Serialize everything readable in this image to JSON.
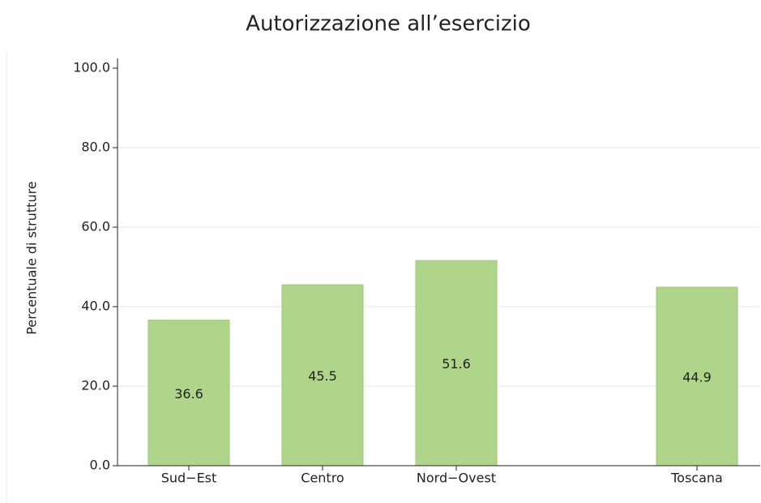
{
  "chart_data": {
    "type": "bar",
    "title": "Autorizzazione all’esercizio",
    "ylabel": "Percentuale di strutture",
    "categories": [
      "Sud−Est",
      "Centro",
      "Nord−Ovest",
      null,
      "Toscana"
    ],
    "values": [
      36.6,
      45.5,
      51.6,
      null,
      44.9
    ],
    "color": "#aed58a",
    "ylim": [
      0,
      100
    ],
    "yticks": [
      {
        "value": 0,
        "label": "0.0"
      },
      {
        "value": 20,
        "label": "20.0"
      },
      {
        "value": 40,
        "label": "40.0"
      },
      {
        "value": 60,
        "label": "60.0"
      },
      {
        "value": 80,
        "label": "80.0"
      },
      {
        "value": 100,
        "label": "100.0"
      }
    ],
    "grid": true
  }
}
